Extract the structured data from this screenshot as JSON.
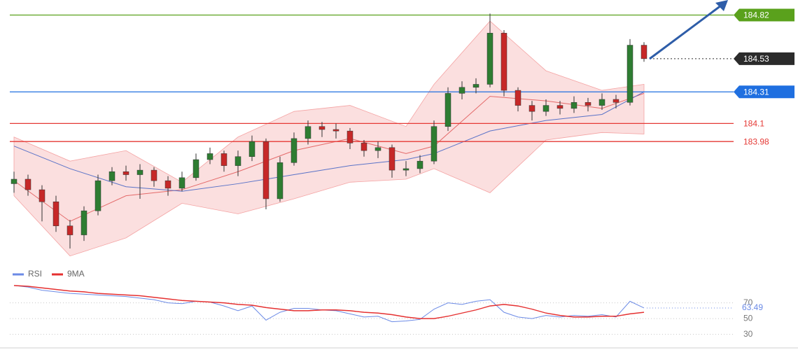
{
  "chart_data": [
    {
      "type": "candlestick",
      "ylim": [
        183.2,
        184.92
      ],
      "up_color": "#2e7d32",
      "down_color": "#c62828",
      "open": [
        183.7,
        183.73,
        183.66,
        183.58,
        183.42,
        183.36,
        183.52,
        183.72,
        183.78,
        183.76,
        183.79,
        183.72,
        183.67,
        183.74,
        183.86,
        183.9,
        183.82,
        183.88,
        183.98,
        183.6,
        183.84,
        184.0,
        184.08,
        184.06,
        184.05,
        183.97,
        183.92,
        183.94,
        183.79,
        183.8,
        183.85,
        184.08,
        184.3,
        184.34,
        184.36,
        184.7,
        184.32,
        184.22,
        184.18,
        184.22,
        184.2,
        184.24,
        184.22,
        184.26,
        184.24,
        184.62
      ],
      "high": [
        183.78,
        183.76,
        183.69,
        183.62,
        183.46,
        183.55,
        183.76,
        183.81,
        183.82,
        183.83,
        183.81,
        183.75,
        183.78,
        183.9,
        183.94,
        183.92,
        183.92,
        184.02,
        184.0,
        183.88,
        184.04,
        184.12,
        184.11,
        184.1,
        184.07,
        183.99,
        183.98,
        183.96,
        183.85,
        183.89,
        184.12,
        184.34,
        184.38,
        184.4,
        184.83,
        184.72,
        184.34,
        184.25,
        184.26,
        184.25,
        184.28,
        184.27,
        184.3,
        184.29,
        184.66,
        184.64
      ],
      "low": [
        183.64,
        183.62,
        183.45,
        183.38,
        183.27,
        183.32,
        183.49,
        183.69,
        183.72,
        183.6,
        183.68,
        183.62,
        183.65,
        183.72,
        183.83,
        183.78,
        183.75,
        183.85,
        183.53,
        183.58,
        183.82,
        183.96,
        184.01,
        184.0,
        183.93,
        183.88,
        183.87,
        183.74,
        183.75,
        183.77,
        183.83,
        184.05,
        184.26,
        184.3,
        184.34,
        184.28,
        184.18,
        184.12,
        184.15,
        184.16,
        184.17,
        184.18,
        184.19,
        184.2,
        184.22,
        184.51
      ],
      "close": [
        183.73,
        183.66,
        183.58,
        183.42,
        183.36,
        183.52,
        183.72,
        183.78,
        183.76,
        183.79,
        183.72,
        183.67,
        183.74,
        183.86,
        183.9,
        183.82,
        183.88,
        183.98,
        183.6,
        183.84,
        184.0,
        184.08,
        184.06,
        184.05,
        183.97,
        183.92,
        183.94,
        183.79,
        183.8,
        183.85,
        184.08,
        184.3,
        184.34,
        184.36,
        184.7,
        184.32,
        184.22,
        184.18,
        184.22,
        184.2,
        184.24,
        184.22,
        184.26,
        184.24,
        184.62,
        184.53
      ],
      "bands": {
        "x": [
          0,
          4,
          8,
          12,
          16,
          20,
          24,
          28,
          30,
          34,
          38,
          42,
          45
        ],
        "upper": [
          184.01,
          183.85,
          183.92,
          183.71,
          184.01,
          184.18,
          184.22,
          184.08,
          184.36,
          184.78,
          184.45,
          184.32,
          184.36
        ],
        "lower": [
          183.62,
          183.22,
          183.34,
          183.57,
          183.5,
          183.6,
          183.71,
          183.73,
          183.8,
          183.64,
          183.99,
          184.04,
          184.03
        ],
        "color": "#f4a3a3",
        "middle": [
          183.72,
          183.45,
          183.62,
          183.66,
          183.78,
          183.92,
          184.0,
          183.9,
          183.95,
          184.28,
          184.25,
          184.2,
          184.3
        ],
        "middle_color": "#e46a6a",
        "slow": [
          183.95,
          183.8,
          183.68,
          183.65,
          183.7,
          183.76,
          183.82,
          183.86,
          183.9,
          184.05,
          184.12,
          184.16,
          184.31
        ],
        "slow_color": "#5a73c8"
      },
      "levels": [
        {
          "value": 184.82,
          "color": "#5aa11c",
          "boxed": true,
          "style": "solid"
        },
        {
          "value": 184.53,
          "color": "#2b2b2b",
          "boxed": true,
          "style": "dotted"
        },
        {
          "value": 184.31,
          "color": "#1f6fe0",
          "boxed": true,
          "style": "solid"
        },
        {
          "value": 184.1,
          "color": "#e53935",
          "boxed": false,
          "style": "solid"
        },
        {
          "value": 183.98,
          "color": "#e53935",
          "boxed": false,
          "style": "solid"
        }
      ]
    },
    {
      "type": "line",
      "ylim": [
        19,
        99
      ],
      "yticks": [
        30,
        50,
        70
      ],
      "grid": true,
      "series": [
        {
          "name": "RSI",
          "color": "#6b8ae6",
          "values": [
            92,
            90,
            86,
            84,
            82,
            81,
            80,
            79,
            78,
            76,
            74,
            70,
            69,
            72,
            71,
            66,
            60,
            66,
            48,
            58,
            63,
            63,
            61,
            60,
            56,
            52,
            53,
            46,
            47,
            49,
            62,
            70,
            68,
            72,
            74,
            58,
            52,
            50,
            54,
            52,
            54,
            53,
            55,
            52,
            72,
            63.49
          ]
        },
        {
          "name": "9MA",
          "color": "#e53030",
          "values": [
            92,
            91,
            89,
            87,
            85,
            84,
            82,
            81,
            80,
            79,
            77,
            75,
            73,
            72,
            71,
            70,
            68,
            67,
            64,
            62,
            60,
            60,
            61,
            61,
            60,
            58,
            57,
            55,
            52,
            50,
            50,
            53,
            57,
            61,
            66,
            68,
            66,
            62,
            57,
            54,
            52,
            52,
            53,
            53,
            56,
            58
          ]
        }
      ]
    }
  ]
}
